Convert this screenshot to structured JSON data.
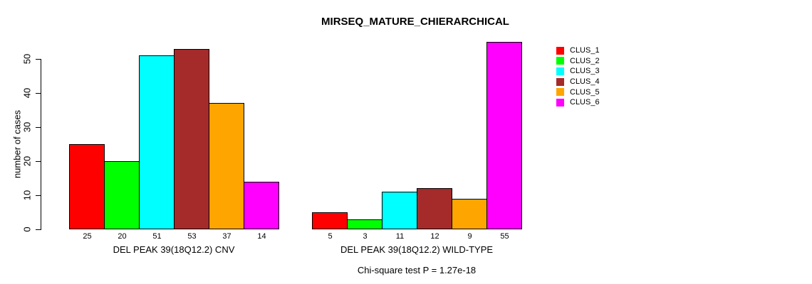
{
  "chart_data": {
    "type": "bar",
    "title": "MIRSEQ_MATURE_CHIERARCHICAL",
    "ylabel": "number of cases",
    "xlabel": "",
    "ylim": [
      0,
      50
    ],
    "yticks": [
      0,
      10,
      20,
      30,
      40,
      50
    ],
    "grid": false,
    "legend_position": "top-right",
    "annotation": "Chi-square test P = 1.27e-18",
    "categories": [
      "DEL PEAK 39(18Q12.2) CNV",
      "DEL PEAK 39(18Q12.2) WILD-TYPE"
    ],
    "series": [
      {
        "name": "CLUS_1",
        "color": "#FF0000",
        "values": [
          25,
          5
        ]
      },
      {
        "name": "CLUS_2",
        "color": "#00FF00",
        "values": [
          20,
          3
        ]
      },
      {
        "name": "CLUS_3",
        "color": "#00FFFF",
        "values": [
          51,
          11
        ]
      },
      {
        "name": "CLUS_4",
        "color": "#A52A2A",
        "values": [
          53,
          12
        ]
      },
      {
        "name": "CLUS_5",
        "color": "#FFA500",
        "values": [
          37,
          9
        ]
      },
      {
        "name": "CLUS_6",
        "color": "#FF00FF",
        "values": [
          14,
          55
        ]
      }
    ]
  }
}
